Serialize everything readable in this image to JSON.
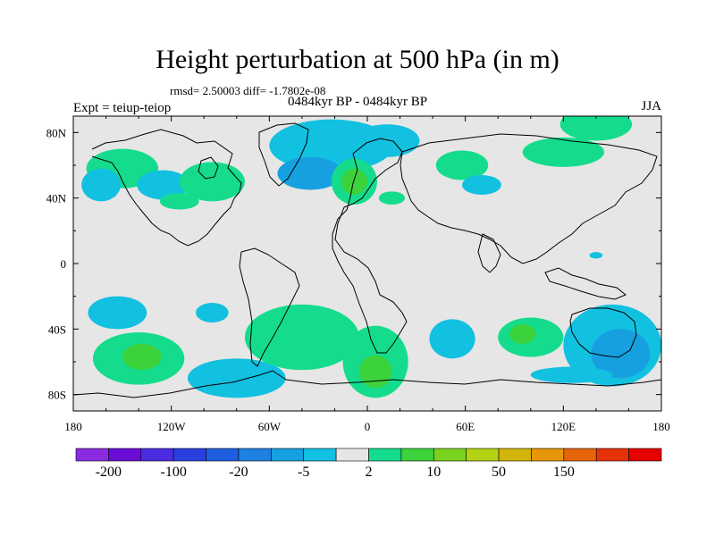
{
  "title": "Height perturbation at 500 hPa (in m)",
  "rmsd_text": "rmsd= 2.50003 diff= -1.7802e-08",
  "left_label": "Expt = teiup-teiop",
  "center_label": "0484kyr BP - 0484kyr BP",
  "right_label": "JJA",
  "colors": {
    "land_fill": "#e6e6e6",
    "frame": "#000000",
    "coastline": "#000000"
  },
  "chart_data": {
    "type": "heatmap",
    "projection": "cylindrical-equidistant",
    "xlim": [
      -180,
      180
    ],
    "ylim": [
      -90,
      90
    ],
    "x_ticks": [
      {
        "value": -180,
        "label": "180"
      },
      {
        "value": -120,
        "label": "120W"
      },
      {
        "value": -60,
        "label": "60W"
      },
      {
        "value": 0,
        "label": "0"
      },
      {
        "value": 60,
        "label": "60E"
      },
      {
        "value": 120,
        "label": "120E"
      },
      {
        "value": 180,
        "label": "180"
      }
    ],
    "y_ticks": [
      {
        "value": 80,
        "label": "80N"
      },
      {
        "value": 40,
        "label": "40N"
      },
      {
        "value": 0,
        "label": "0"
      },
      {
        "value": -40,
        "label": "40S"
      },
      {
        "value": -80,
        "label": "80S"
      }
    ],
    "colorbar": {
      "colors": [
        "#8a2be2",
        "#6a0dd6",
        "#4b2ce0",
        "#2a3fe0",
        "#1e5fe0",
        "#1e80e0",
        "#16a0e0",
        "#12c0e0",
        "#e6e6e6",
        "#14dc8c",
        "#3cd23c",
        "#78d21e",
        "#b4d214",
        "#d2b40a",
        "#e6960a",
        "#e6640a",
        "#e6320a",
        "#e60000"
      ],
      "labels": [
        {
          "after_box": 1,
          "text": "-200"
        },
        {
          "after_box": 3,
          "text": "-100"
        },
        {
          "after_box": 5,
          "text": "-20"
        },
        {
          "after_box": 7,
          "text": "-5"
        },
        {
          "after_box": 9,
          "text": "2"
        },
        {
          "after_box": 11,
          "text": "10"
        },
        {
          "after_box": 13,
          "text": "50"
        },
        {
          "after_box": 15,
          "text": "150"
        }
      ]
    },
    "contour_regions": [
      {
        "lon": 140,
        "lat": 5,
        "rlon": 4,
        "rlat": 2,
        "level": 7
      },
      {
        "lon": 140,
        "lat": 85,
        "rlon": 22,
        "rlat": 10,
        "level": 9
      },
      {
        "lon": -150,
        "lat": 58,
        "rlon": 22,
        "rlat": 12,
        "level": 9
      },
      {
        "lon": -163,
        "lat": 48,
        "rlon": 12,
        "rlat": 10,
        "level": 7
      },
      {
        "lon": -125,
        "lat": 48,
        "rlon": 16,
        "rlat": 9,
        "level": 7
      },
      {
        "lon": -95,
        "lat": 50,
        "rlon": 20,
        "rlat": 12,
        "level": 9
      },
      {
        "lon": -115,
        "lat": 38,
        "rlon": 12,
        "rlat": 5,
        "level": 9
      },
      {
        "lon": -22,
        "lat": 72,
        "rlon": 38,
        "rlat": 16,
        "level": 7
      },
      {
        "lon": -35,
        "lat": 55,
        "rlon": 20,
        "rlat": 10,
        "level": 6
      },
      {
        "lon": 12,
        "lat": 75,
        "rlon": 20,
        "rlat": 10,
        "level": 7
      },
      {
        "lon": -8,
        "lat": 50,
        "rlon": 14,
        "rlat": 14,
        "level": 9
      },
      {
        "lon": -8,
        "lat": 50,
        "rlon": 8,
        "rlat": 8,
        "level": 10
      },
      {
        "lon": 58,
        "lat": 60,
        "rlon": 16,
        "rlat": 9,
        "level": 9
      },
      {
        "lon": 70,
        "lat": 48,
        "rlon": 12,
        "rlat": 6,
        "level": 7
      },
      {
        "lon": 15,
        "lat": 40,
        "rlon": 8,
        "rlat": 4,
        "level": 9
      },
      {
        "lon": 120,
        "lat": 68,
        "rlon": 25,
        "rlat": 9,
        "level": 9
      },
      {
        "lon": -140,
        "lat": -58,
        "rlon": 28,
        "rlat": 16,
        "level": 9
      },
      {
        "lon": -138,
        "lat": -57,
        "rlon": 12,
        "rlat": 8,
        "level": 10
      },
      {
        "lon": -153,
        "lat": -30,
        "rlon": 18,
        "rlat": 10,
        "level": 7
      },
      {
        "lon": -95,
        "lat": -30,
        "rlon": 10,
        "rlat": 6,
        "level": 7
      },
      {
        "lon": -80,
        "lat": -70,
        "rlon": 30,
        "rlat": 12,
        "level": 7
      },
      {
        "lon": -40,
        "lat": -45,
        "rlon": 35,
        "rlat": 20,
        "level": 9
      },
      {
        "lon": 5,
        "lat": -60,
        "rlon": 20,
        "rlat": 22,
        "level": 9
      },
      {
        "lon": 5,
        "lat": -66,
        "rlon": 10,
        "rlat": 10,
        "level": 10
      },
      {
        "lon": 52,
        "lat": -46,
        "rlon": 14,
        "rlat": 12,
        "level": 7
      },
      {
        "lon": 100,
        "lat": -45,
        "rlon": 20,
        "rlat": 12,
        "level": 9
      },
      {
        "lon": 95,
        "lat": -43,
        "rlon": 8,
        "rlat": 6,
        "level": 10
      },
      {
        "lon": 150,
        "lat": -50,
        "rlon": 30,
        "rlat": 25,
        "level": 7
      },
      {
        "lon": 155,
        "lat": -55,
        "rlon": 18,
        "rlat": 15,
        "level": 6
      },
      {
        "lon": 125,
        "lat": -68,
        "rlon": 25,
        "rlat": 5,
        "level": 7
      }
    ]
  }
}
